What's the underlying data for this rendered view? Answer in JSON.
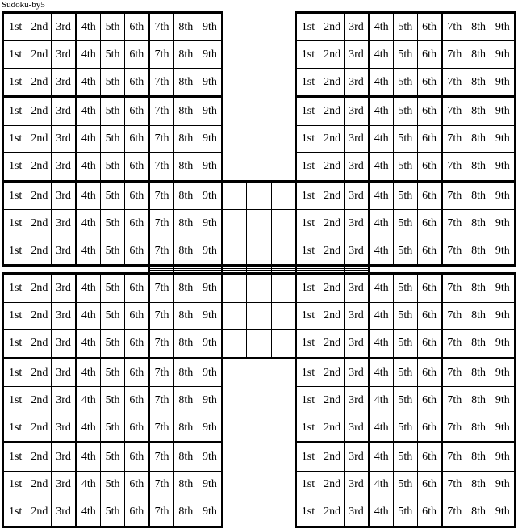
{
  "title": "Sudoku-by5",
  "ordinals": [
    "1st",
    "2nd",
    "3rd",
    "4th",
    "5th",
    "6th",
    "7th",
    "8th",
    "9th"
  ],
  "board": {
    "grid_rows": 9,
    "grid_cols": 9,
    "grids": [
      {
        "name": "top-left",
        "has_labels": true
      },
      {
        "name": "top-right",
        "has_labels": true
      },
      {
        "name": "center",
        "has_labels": false
      },
      {
        "name": "bottom-left",
        "has_labels": true
      },
      {
        "name": "bottom-right",
        "has_labels": true
      }
    ]
  },
  "colors": {
    "background": "#ffffff",
    "grid_lines": "#000000",
    "text": "#000000"
  }
}
